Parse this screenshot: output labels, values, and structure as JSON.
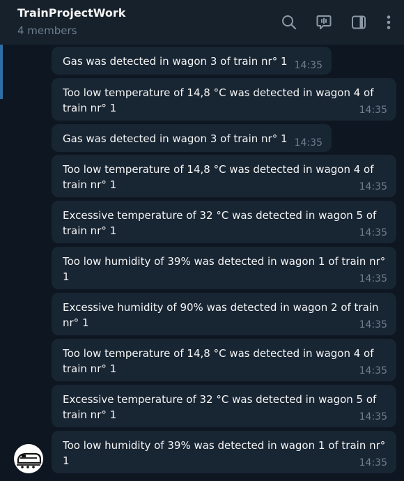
{
  "header": {
    "title": "TrainProjectWork",
    "subtitle": "4 members",
    "icons": [
      "search-icon",
      "voice-chat-icon",
      "sidebar-toggle-icon",
      "more-vert-icon"
    ]
  },
  "colors": {
    "background": "#0e1621",
    "header": "#17212b",
    "bubble": "#182533",
    "muted_text": "#6d7f8f",
    "accent": "#2f6ea5"
  },
  "messages": [
    {
      "lines": [
        "Gas was detected in wagon 3 of train nr° 1"
      ],
      "time": "14:35"
    },
    {
      "lines": [
        "Too low temperature of 14,8 °C  was detected in wagon 4 of",
        "train nr° 1"
      ],
      "time": "14:35"
    },
    {
      "lines": [
        "Gas was detected in wagon 3 of train nr° 1"
      ],
      "time": "14:35"
    },
    {
      "lines": [
        "Too low temperature of 14,8 °C  was detected in wagon 4 of",
        "train nr° 1"
      ],
      "time": "14:35"
    },
    {
      "lines": [
        "Excessive temperature of 32 °C  was detected in wagon 5 of",
        "train nr° 1"
      ],
      "time": "14:35"
    },
    {
      "lines": [
        "Too low humidity of 39% was detected in wagon 1 of train nr°",
        "1"
      ],
      "time": "14:35"
    },
    {
      "lines": [
        "Excessive humidity of 90% was detected in wagon 2 of train",
        "nr° 1"
      ],
      "time": "14:35"
    },
    {
      "lines": [
        "Too low temperature of 14,8 °C  was detected in wagon 4 of",
        "train nr° 1"
      ],
      "time": "14:35"
    },
    {
      "lines": [
        "Excessive temperature of 32 °C  was detected in wagon 5 of",
        "train nr° 1"
      ],
      "time": "14:35"
    },
    {
      "lines": [
        "Too low humidity of 39% was detected in wagon 1 of train nr°",
        "1"
      ],
      "time": "14:35"
    }
  ]
}
